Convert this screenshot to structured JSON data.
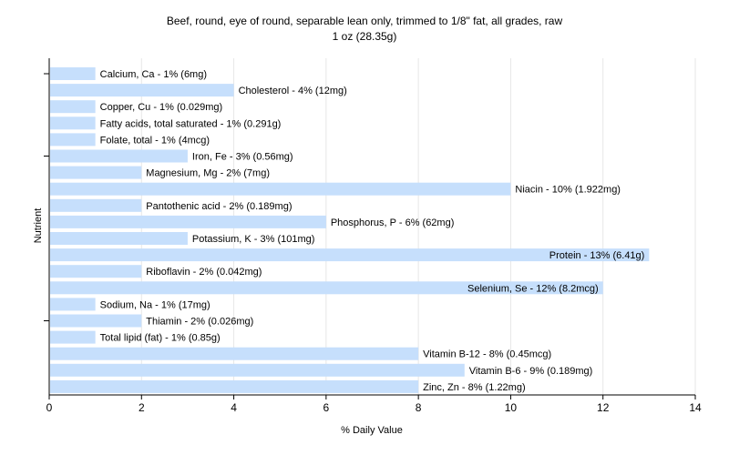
{
  "chart_data": {
    "type": "bar",
    "orientation": "horizontal",
    "title": "Beef, round, eye of round, separable lean only, trimmed to 1/8\" fat, all grades, raw",
    "subtitle": "1 oz (28.35g)",
    "xlabel": "% Daily Value",
    "ylabel": "Nutrient",
    "xlim": [
      0,
      14
    ],
    "xticks": [
      "0",
      "2",
      "4",
      "6",
      "8",
      "10",
      "12",
      "14"
    ],
    "grid": "vertical",
    "bar_color": "#c6dffc",
    "categories": [
      "Calcium, Ca",
      "Cholesterol",
      "Copper, Cu",
      "Fatty acids, total saturated",
      "Folate, total",
      "Iron, Fe",
      "Magnesium, Mg",
      "Niacin",
      "Pantothenic acid",
      "Phosphorus, P",
      "Potassium, K",
      "Protein",
      "Riboflavin",
      "Selenium, Se",
      "Sodium, Na",
      "Thiamin",
      "Total lipid (fat)",
      "Vitamin B-12",
      "Vitamin B-6",
      "Zinc, Zn"
    ],
    "values": [
      1,
      4,
      1,
      1,
      1,
      3,
      2,
      10,
      2,
      6,
      3,
      13,
      2,
      12,
      1,
      2,
      1,
      8,
      9,
      8
    ],
    "labels": [
      "Calcium, Ca - 1% (6mg)",
      "Cholesterol - 4% (12mg)",
      "Copper, Cu - 1% (0.029mg)",
      "Fatty acids, total saturated - 1% (0.291g)",
      "Folate, total - 1% (4mcg)",
      "Iron, Fe - 3% (0.56mg)",
      "Magnesium, Mg - 2% (7mg)",
      "Niacin - 10% (1.922mg)",
      "Pantothenic acid - 2% (0.189mg)",
      "Phosphorus, P - 6% (62mg)",
      "Potassium, K - 3% (101mg)",
      "Protein - 13% (6.41g)",
      "Riboflavin - 2% (0.042mg)",
      "Selenium, Se - 12% (8.2mcg)",
      "Sodium, Na - 1% (17mg)",
      "Thiamin - 2% (0.026mg)",
      "Total lipid (fat) - 1% (0.85g)",
      "Vitamin B-12 - 8% (0.45mcg)",
      "Vitamin B-6 - 9% (0.189mg)",
      "Zinc, Zn - 8% (1.22mg)"
    ]
  }
}
